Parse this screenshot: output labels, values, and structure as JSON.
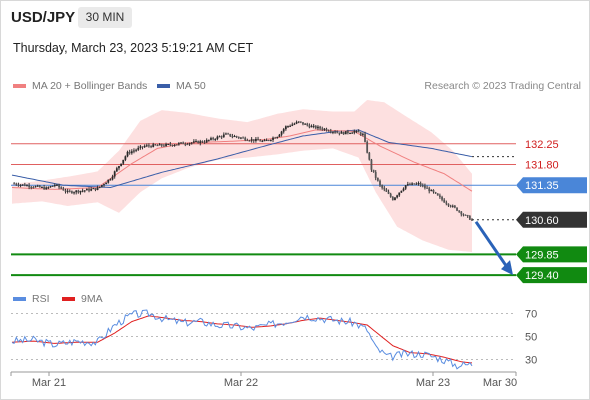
{
  "header": {
    "symbol": "USD/JPY",
    "timeframe": "30 MIN",
    "datetime": "Thursday, March 23, 2023 5:19:21 AM CET"
  },
  "legend": {
    "ma20_label": "MA 20 + Bollinger Bands",
    "ma50_label": "MA 50",
    "copyright": "Research © 2023 Trading Central",
    "rsi_label": "RSI",
    "ma9_label": "9MA"
  },
  "colors": {
    "ma20": "#f08080",
    "ma50": "#3a5ea8",
    "bollinger_fill": "#fde0e0",
    "resistance": "#e06060",
    "pivot": "#4a86d8",
    "last_price": "#333333",
    "support": "#118a11",
    "forecast_arrow": "#2a62b8",
    "rsi": "#5a8de0",
    "rsi_ma": "#e02020",
    "candle_up": "#2a2a2a",
    "candle_down": "#555555"
  },
  "chart_data": [
    {
      "type": "candlestick",
      "title": "USD/JPY",
      "timeframe": "30 MIN",
      "x_ticks": [
        "Mar 21",
        "Mar 22",
        "Mar 23",
        "Mar 30"
      ],
      "ylim": [
        129.25,
        133.2
      ],
      "levels": [
        {
          "value": 132.25,
          "label": "132.25",
          "kind": "resistance"
        },
        {
          "value": 131.8,
          "label": "131.80",
          "kind": "resistance"
        },
        {
          "value": 131.35,
          "label": "131.35",
          "kind": "pivot"
        },
        {
          "value": 130.6,
          "label": "130.60",
          "kind": "last"
        },
        {
          "value": 129.85,
          "label": "129.85",
          "kind": "support"
        },
        {
          "value": 129.4,
          "label": "129.40",
          "kind": "support"
        }
      ],
      "close_anchors": [
        [
          0,
          131.39
        ],
        [
          8,
          131.34
        ],
        [
          16,
          131.28
        ],
        [
          20,
          131.36
        ],
        [
          26,
          131.2
        ],
        [
          34,
          131.24
        ],
        [
          40,
          131.28
        ],
        [
          46,
          131.5
        ],
        [
          54,
          132.05
        ],
        [
          62,
          132.2
        ],
        [
          72,
          132.22
        ],
        [
          80,
          132.26
        ],
        [
          90,
          132.3
        ],
        [
          100,
          132.45
        ],
        [
          110,
          132.35
        ],
        [
          118,
          132.3
        ],
        [
          124,
          132.42
        ],
        [
          128,
          132.62
        ],
        [
          134,
          132.72
        ],
        [
          140,
          132.62
        ],
        [
          146,
          132.57
        ],
        [
          154,
          132.48
        ],
        [
          160,
          132.52
        ],
        [
          164,
          132.45
        ],
        [
          168,
          131.7
        ],
        [
          172,
          131.34
        ],
        [
          178,
          131.05
        ],
        [
          184,
          131.35
        ],
        [
          190,
          131.38
        ],
        [
          196,
          131.22
        ],
        [
          202,
          131.0
        ],
        [
          208,
          130.82
        ],
        [
          212,
          130.68
        ],
        [
          215,
          130.6
        ]
      ],
      "ma20_anchors": [
        [
          0,
          131.3
        ],
        [
          20,
          131.26
        ],
        [
          40,
          131.3
        ],
        [
          56,
          131.82
        ],
        [
          68,
          132.15
        ],
        [
          82,
          132.27
        ],
        [
          100,
          132.3
        ],
        [
          118,
          132.34
        ],
        [
          130,
          132.42
        ],
        [
          142,
          132.55
        ],
        [
          160,
          132.52
        ],
        [
          172,
          132.2
        ],
        [
          188,
          131.85
        ],
        [
          202,
          131.6
        ],
        [
          215,
          131.22
        ]
      ],
      "ma50_anchors": [
        [
          0,
          131.57
        ],
        [
          24,
          131.35
        ],
        [
          46,
          131.3
        ],
        [
          70,
          131.63
        ],
        [
          96,
          131.92
        ],
        [
          118,
          132.2
        ],
        [
          136,
          132.42
        ],
        [
          152,
          132.52
        ],
        [
          162,
          132.55
        ],
        [
          176,
          132.28
        ],
        [
          196,
          132.15
        ],
        [
          215,
          131.97
        ]
      ],
      "bband_upper": [
        [
          0,
          131.38
        ],
        [
          14,
          131.45
        ],
        [
          28,
          131.55
        ],
        [
          40,
          131.65
        ],
        [
          50,
          132.1
        ],
        [
          60,
          132.75
        ],
        [
          70,
          132.98
        ],
        [
          82,
          132.92
        ],
        [
          96,
          132.8
        ],
        [
          110,
          132.72
        ],
        [
          124,
          132.9
        ],
        [
          136,
          133.0
        ],
        [
          150,
          132.95
        ],
        [
          160,
          132.95
        ],
        [
          166,
          133.2
        ],
        [
          174,
          133.15
        ],
        [
          184,
          132.85
        ],
        [
          196,
          132.5
        ],
        [
          206,
          132.1
        ],
        [
          215,
          131.6
        ]
      ],
      "bband_lower": [
        [
          0,
          130.95
        ],
        [
          14,
          131.0
        ],
        [
          26,
          130.9
        ],
        [
          40,
          130.98
        ],
        [
          50,
          130.75
        ],
        [
          60,
          131.2
        ],
        [
          70,
          131.5
        ],
        [
          82,
          131.72
        ],
        [
          96,
          131.9
        ],
        [
          110,
          131.95
        ],
        [
          124,
          132.02
        ],
        [
          136,
          132.1
        ],
        [
          150,
          132.15
        ],
        [
          162,
          131.95
        ],
        [
          170,
          131.2
        ],
        [
          180,
          130.45
        ],
        [
          192,
          130.15
        ],
        [
          204,
          129.95
        ],
        [
          215,
          129.9
        ]
      ],
      "forecast": {
        "from": 130.6,
        "to": 129.4
      }
    },
    {
      "type": "line",
      "title": "RSI",
      "y_ticks": [
        70,
        50,
        30
      ],
      "ylim": [
        20,
        80
      ],
      "series": [
        {
          "name": "RSI",
          "anchors": [
            [
              0,
              46
            ],
            [
              10,
              47
            ],
            [
              20,
              43
            ],
            [
              30,
              46
            ],
            [
              40,
              45
            ],
            [
              48,
              60
            ],
            [
              56,
              69
            ],
            [
              64,
              70
            ],
            [
              72,
              65
            ],
            [
              80,
              62
            ],
            [
              88,
              63
            ],
            [
              96,
              60
            ],
            [
              104,
              59
            ],
            [
              112,
              57
            ],
            [
              120,
              60
            ],
            [
              128,
              63
            ],
            [
              136,
              68
            ],
            [
              144,
              66
            ],
            [
              152,
              64
            ],
            [
              160,
              62
            ],
            [
              166,
              56
            ],
            [
              170,
              40
            ],
            [
              176,
              32
            ],
            [
              184,
              35
            ],
            [
              192,
              35
            ],
            [
              200,
              31
            ],
            [
              208,
              25
            ],
            [
              215,
              26
            ]
          ]
        },
        {
          "name": "9MA",
          "anchors": [
            [
              0,
              45
            ],
            [
              10,
              46
            ],
            [
              20,
              44
            ],
            [
              30,
              45
            ],
            [
              40,
              45
            ],
            [
              48,
              53
            ],
            [
              56,
              63
            ],
            [
              64,
              68
            ],
            [
              72,
              66
            ],
            [
              80,
              64
            ],
            [
              88,
              63
            ],
            [
              96,
              61
            ],
            [
              104,
              60
            ],
            [
              112,
              58
            ],
            [
              120,
              59
            ],
            [
              128,
              61
            ],
            [
              136,
              64
            ],
            [
              144,
              66
            ],
            [
              152,
              64
            ],
            [
              160,
              62
            ],
            [
              166,
              60
            ],
            [
              172,
              51
            ],
            [
              178,
              42
            ],
            [
              186,
              36
            ],
            [
              194,
              35
            ],
            [
              202,
              32
            ],
            [
              210,
              28
            ],
            [
              215,
              27
            ]
          ]
        }
      ]
    }
  ]
}
